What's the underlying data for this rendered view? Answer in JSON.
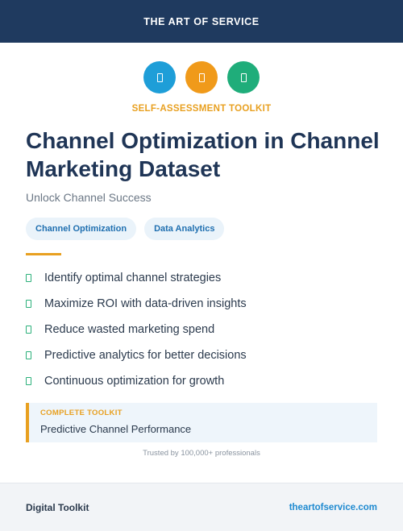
{
  "header": {
    "brand": "THE ART OF SERVICE"
  },
  "icons": [
    {
      "name": "tablet-icon",
      "color": "#1e9ed8"
    },
    {
      "name": "tablet-icon",
      "color": "#f09a1a"
    },
    {
      "name": "tablet-icon",
      "color": "#1fad7a"
    }
  ],
  "eyebrow": "SELF-ASSESSMENT TOOLKIT",
  "title": "Channel Optimization in Channel Marketing Dataset",
  "subtitle": "Unlock Channel Success",
  "tags": [
    "Channel Optimization",
    "Data Analytics"
  ],
  "features": [
    "Identify optimal channel strategies",
    "Maximize ROI with data-driven insights",
    "Reduce wasted marketing spend",
    "Predictive analytics for better decisions",
    "Continuous optimization for growth"
  ],
  "callout": {
    "label": "COMPLETE TOOLKIT",
    "text": "Predictive Channel Performance"
  },
  "trust": "Trusted by 100,000+ professionals",
  "footer": {
    "left": "Digital Toolkit",
    "right": "theartofservice.com"
  },
  "colors": {
    "navy": "#1f3a5f",
    "accent": "#e8a020",
    "check": "#2bb07a",
    "link": "#1f8ad0"
  }
}
